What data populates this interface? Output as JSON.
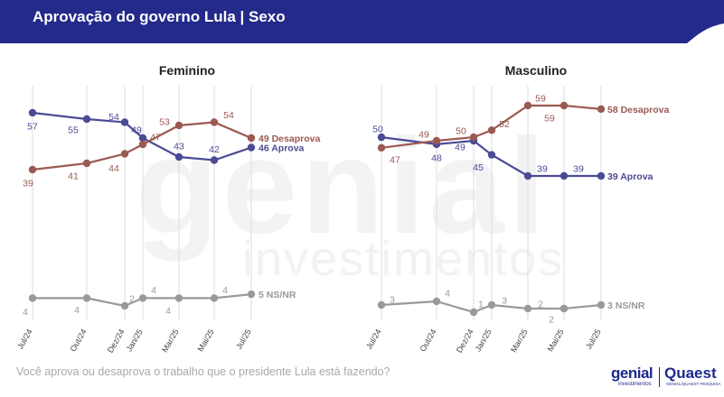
{
  "header": {
    "title": "Aprovação do governo Lula | Sexo"
  },
  "watermark": {
    "main": "genial",
    "sub": "investimentos"
  },
  "footer": {
    "question": "Você aprova ou desaprova o trabalho que o presidente Lula está fazendo?"
  },
  "logos": {
    "genial": "genial",
    "genial_sub": "investimentos",
    "quaest": "Quaest",
    "quaest_sub": "GENIAL/QUAEST PESQUISA"
  },
  "colors": {
    "header": "#232a8a",
    "aprova": "#4b4a95",
    "desaprova": "#9a5a52",
    "nsnr": "#999999",
    "grid": "#dcdcdc"
  },
  "chart_data": [
    {
      "type": "line",
      "title": "Feminino",
      "categories": [
        "Jul/24",
        "Out/24",
        "Dez/24",
        "Jan/25",
        "Mar/25",
        "Mai/25",
        "Jul/25"
      ],
      "ylim": [
        0,
        65
      ],
      "series": [
        {
          "name": "Aprova",
          "end_label": "46 Aprova",
          "values": [
            57,
            55,
            54,
            49,
            43,
            42,
            46
          ]
        },
        {
          "name": "Desaprova",
          "end_label": "49 Desaprova",
          "values": [
            39,
            41,
            44,
            47,
            53,
            54,
            49
          ]
        },
        {
          "name": "NS/NR",
          "end_label": "5 NS/NR",
          "values": [
            4,
            4,
            2,
            4,
            4,
            4,
            5
          ]
        }
      ]
    },
    {
      "type": "line",
      "title": "Masculino",
      "categories": [
        "Jul/24",
        "Out/24",
        "Dez/24",
        "Jan/25",
        "Mar/25",
        "Mai/25",
        "Jul/25"
      ],
      "ylim": [
        0,
        65
      ],
      "series": [
        {
          "name": "Aprova",
          "end_label": "39 Aprova",
          "values": [
            50,
            48,
            49,
            45,
            39,
            39,
            39
          ]
        },
        {
          "name": "Desaprova",
          "end_label": "58 Desaprova",
          "values": [
            47,
            49,
            50,
            52,
            59,
            59,
            58
          ]
        },
        {
          "name": "NS/NR",
          "end_label": "3 NS/NR",
          "values": [
            3,
            4,
            1,
            3,
            2,
            2,
            3
          ]
        }
      ]
    }
  ]
}
